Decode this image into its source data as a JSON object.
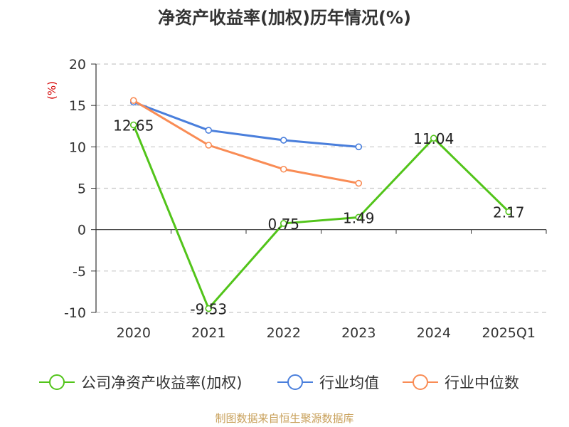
{
  "chart_data": {
    "type": "line",
    "title": "净资产收益率(加权)历年情况(%)",
    "ylabel": "(%)",
    "xlabel": "",
    "categories": [
      "2020",
      "2021",
      "2022",
      "2023",
      "2024",
      "2025Q1"
    ],
    "ylim": [
      -10,
      20
    ],
    "yticks": [
      "20",
      "15",
      "10",
      "5",
      "0",
      "-5",
      "-10"
    ],
    "yticks_values": [
      20,
      15,
      10,
      5,
      0,
      -5,
      -10
    ],
    "grid": true,
    "legend_position": "bottom",
    "series": [
      {
        "name": "公司净资产收益率(加权)",
        "color": "#52c41a",
        "values": [
          12.65,
          -9.53,
          0.75,
          1.49,
          11.04,
          2.17
        ],
        "labels": [
          "12.65",
          "-9.53",
          "0.75",
          "1.49",
          "11.04",
          "2.17"
        ]
      },
      {
        "name": "行业均值",
        "color": "#4a7fdc",
        "values": [
          15.4,
          12.0,
          10.8,
          10.0,
          null,
          null
        ]
      },
      {
        "name": "行业中位数",
        "color": "#f98c55",
        "values": [
          15.6,
          10.2,
          7.3,
          5.6,
          null,
          null
        ]
      }
    ],
    "source": "制图数据来自恒生聚源数据库"
  },
  "colors": {
    "axis": "#333333",
    "grid": "#c8c8c8",
    "ylabel": "#d40000",
    "source": "#c8a05a"
  }
}
